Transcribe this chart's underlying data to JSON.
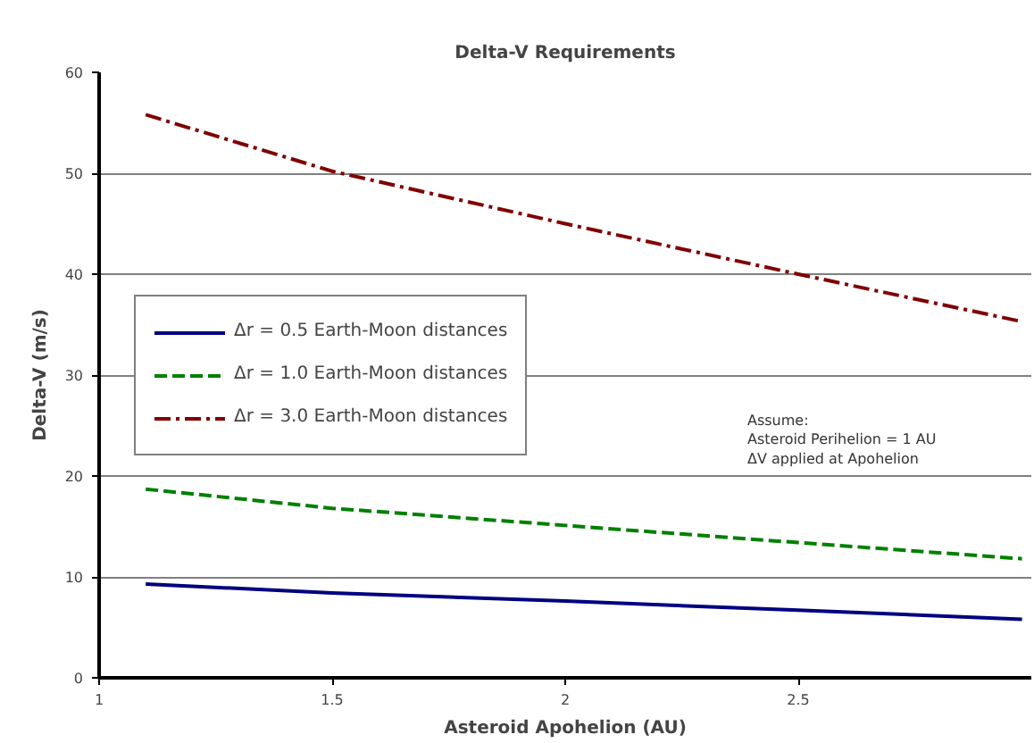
{
  "chart_data": {
    "type": "line",
    "title": "Delta-V Requirements",
    "xlabel": "Asteroid Apohelion (AU)",
    "ylabel": "Delta-V (m/s)",
    "annotations": [
      "Assume:\nAsteroid Perihelion = 1 AU\nΔV applied at Apohelion"
    ],
    "x": [
      1.1,
      1.5,
      2.0,
      2.5,
      2.98
    ],
    "series": [
      {
        "name": "Δr = 0.5 Earth-Moon distances",
        "color": "#000080",
        "line_style": "solid",
        "values": [
          9.3,
          8.4,
          7.6,
          6.7,
          5.8
        ]
      },
      {
        "name": "Δr = 1.0 Earth-Moon distances",
        "color": "#008000",
        "line_style": "dashed",
        "values": [
          18.7,
          16.8,
          15.1,
          13.4,
          11.8
        ]
      },
      {
        "name": "Δr = 3.0 Earth-Moon distances",
        "color": "#800000",
        "line_style": "dashdot",
        "values": [
          55.8,
          50.2,
          45.0,
          40.0,
          35.3
        ]
      }
    ],
    "xlim": [
      1,
      3
    ],
    "ylim": [
      0,
      60
    ],
    "xticks": [
      1,
      1.5,
      2,
      2.5
    ],
    "yticks": [
      0,
      10,
      20,
      30,
      40,
      50,
      60
    ],
    "grid": "y",
    "legend": "left",
    "marker": "none"
  }
}
